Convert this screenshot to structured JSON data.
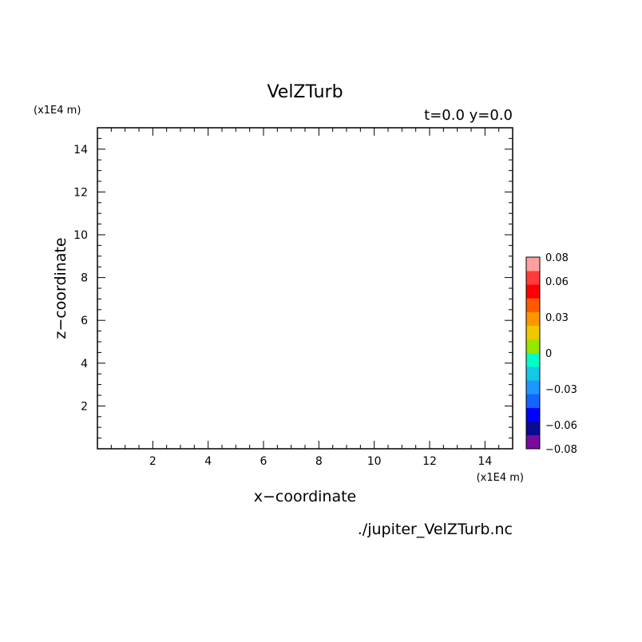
{
  "chart_data": {
    "type": "heatmap",
    "title": "VelZTurb",
    "subtitle": "t=0.0 y=0.0",
    "xlabel": "x−coordinate",
    "ylabel": "z−coordinate",
    "x_unit_label": "(x1E4 m)",
    "y_unit_label": "(x1E4 m)",
    "source_file": "./jupiter_VelZTurb.nc",
    "xlim": [
      0,
      15
    ],
    "ylim": [
      0,
      15
    ],
    "x_ticks": [
      2,
      4,
      6,
      8,
      10,
      12,
      14
    ],
    "y_ticks": [
      2,
      4,
      6,
      8,
      10,
      12,
      14
    ],
    "x_minor_step": 0.5,
    "y_minor_step": 0.5,
    "field_values": [],
    "colorbar": {
      "range": [
        -0.08,
        0.08
      ],
      "labels": [
        {
          "value": 0.08,
          "text": "0.08"
        },
        {
          "value": 0.06,
          "text": "0.06"
        },
        {
          "value": 0.03,
          "text": "0.03"
        },
        {
          "value": 0,
          "text": "0"
        },
        {
          "value": -0.03,
          "text": "−0.03"
        },
        {
          "value": -0.06,
          "text": "−0.06"
        },
        {
          "value": -0.08,
          "text": "−0.08"
        }
      ],
      "colors_bottom_to_top": [
        "#7a0a9e",
        "#0a0a96",
        "#0000ff",
        "#1464ff",
        "#1e96ff",
        "#14c8e6",
        "#00ffc8",
        "#96e600",
        "#f0c800",
        "#ff9600",
        "#ff5a00",
        "#ff0000",
        "#ff3c3c",
        "#ffa0a0"
      ]
    }
  }
}
